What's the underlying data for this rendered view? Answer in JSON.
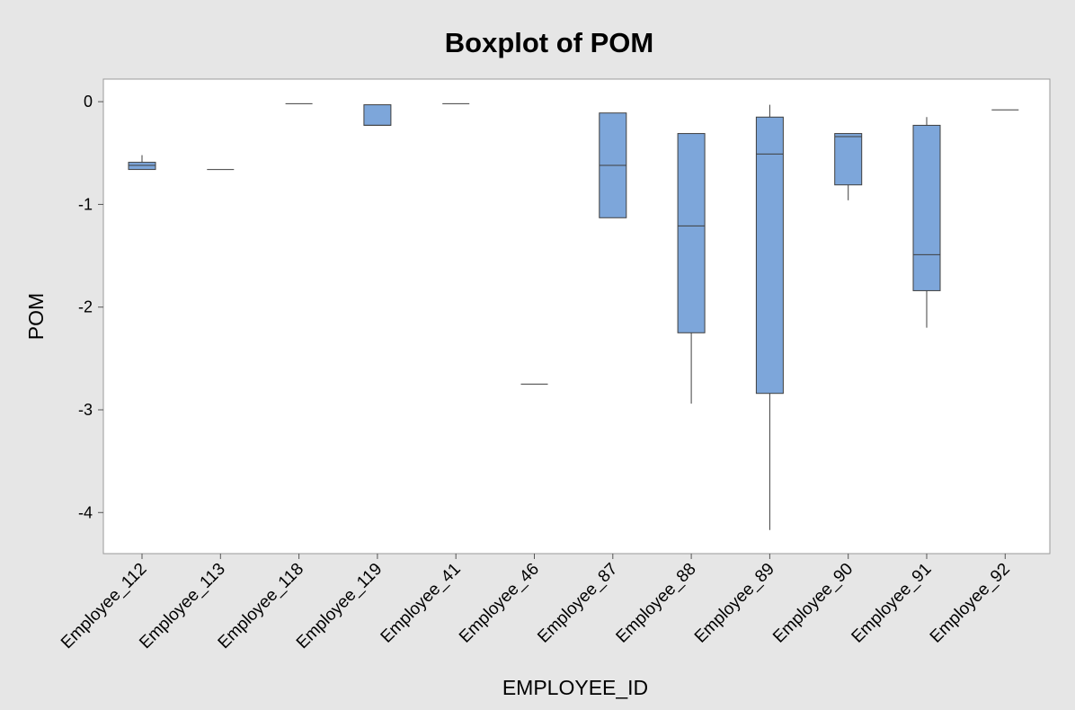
{
  "chart_data": {
    "type": "boxplot",
    "title": "Boxplot of POM",
    "xlabel": "EMPLOYEE_ID",
    "ylabel": "POM",
    "ylim": [
      -4.4,
      0.22
    ],
    "yticks": [
      0,
      -1,
      -2,
      -3,
      -4
    ],
    "grid": false,
    "colors": {
      "box_fill": "#7da6da",
      "box_stroke": "#3f3f3f",
      "background": "#e6e6e6",
      "plot_area": "#ffffff"
    },
    "categories": [
      "Employee_112",
      "Employee_113",
      "Employee_118",
      "Employee_119",
      "Employee_41",
      "Employee_46",
      "Employee_87",
      "Employee_88",
      "Employee_89",
      "Employee_90",
      "Employee_91",
      "Employee_92"
    ],
    "boxes": [
      {
        "min": -0.66,
        "q1": -0.66,
        "median": -0.62,
        "q3": -0.59,
        "max": -0.52
      },
      {
        "min": -0.66,
        "q1": -0.66,
        "median": -0.66,
        "q3": -0.66,
        "max": -0.66
      },
      {
        "min": -0.02,
        "q1": -0.02,
        "median": -0.02,
        "q3": -0.02,
        "max": -0.02
      },
      {
        "min": -0.23,
        "q1": -0.23,
        "median": -0.23,
        "q3": -0.03,
        "max": -0.03
      },
      {
        "min": -0.02,
        "q1": -0.02,
        "median": -0.02,
        "q3": -0.02,
        "max": -0.02
      },
      {
        "min": -2.75,
        "q1": -2.75,
        "median": -2.75,
        "q3": -2.75,
        "max": -2.75
      },
      {
        "min": -1.13,
        "q1": -1.13,
        "median": -0.62,
        "q3": -0.11,
        "max": -0.11
      },
      {
        "min": -2.94,
        "q1": -2.25,
        "median": -1.21,
        "q3": -0.31,
        "max": -0.31
      },
      {
        "min": -4.17,
        "q1": -2.84,
        "median": -0.51,
        "q3": -0.15,
        "max": -0.03
      },
      {
        "min": -0.96,
        "q1": -0.81,
        "median": -0.34,
        "q3": -0.31,
        "max": -0.31
      },
      {
        "min": -2.2,
        "q1": -1.84,
        "median": -1.49,
        "q3": -0.23,
        "max": -0.15
      },
      {
        "min": -0.08,
        "q1": -0.08,
        "median": -0.08,
        "q3": -0.08,
        "max": -0.08
      }
    ]
  }
}
